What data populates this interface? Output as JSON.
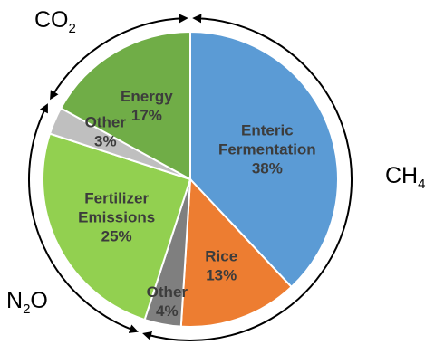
{
  "chart_data": {
    "type": "pie",
    "slices": [
      {
        "label": "Enteric Fermentation",
        "value": 38,
        "value_label": "38%",
        "color": "#5b9bd5"
      },
      {
        "label": "Rice",
        "value": 13,
        "value_label": "13%",
        "color": "#ed7d31"
      },
      {
        "label": "Other",
        "value": 4,
        "value_label": "4%",
        "color": "#7f7f7f"
      },
      {
        "label": "Fertilizer Emissions",
        "value": 25,
        "value_label": "25%",
        "color": "#92d050"
      },
      {
        "label": "Other",
        "value": 3,
        "value_label": "3%",
        "color": "#bfbfbf"
      },
      {
        "label": "Energy",
        "value": 17,
        "value_label": "17%",
        "color": "#70ad47"
      }
    ],
    "groups": [
      {
        "name": "CH",
        "subscript": "4",
        "slices": [
          "Enteric Fermentation",
          "Rice",
          "Other"
        ]
      },
      {
        "name": "N",
        "subscript": "2",
        "suffix": "O",
        "slices": [
          "Fertilizer Emissions",
          "Other"
        ]
      },
      {
        "name": "CO",
        "subscript": "2",
        "slices": [
          "Energy"
        ]
      }
    ]
  }
}
